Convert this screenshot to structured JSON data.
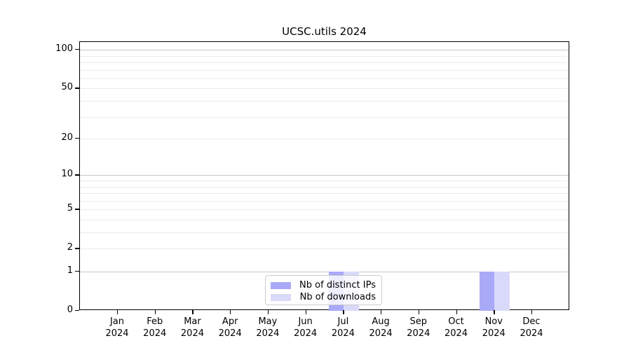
{
  "chart_data": {
    "type": "bar",
    "title": "UCSC.utils 2024",
    "categories": [
      "Jan",
      "Feb",
      "Mar",
      "Apr",
      "May",
      "Jun",
      "Jul",
      "Aug",
      "Sep",
      "Oct",
      "Nov",
      "Dec"
    ],
    "category_year": "2024",
    "series": [
      {
        "name": "Nb of distinct IPs",
        "color": "#a9a9f7",
        "values": [
          0,
          0,
          0,
          0,
          0,
          0,
          1,
          0,
          0,
          0,
          1,
          0
        ]
      },
      {
        "name": "Nb of downloads",
        "color": "#d9d9f9",
        "values": [
          0,
          0,
          0,
          0,
          0,
          0,
          1,
          0,
          0,
          0,
          1,
          0
        ]
      }
    ],
    "xlabel": "",
    "ylabel": "",
    "y_axis": {
      "scale": "log10(value+1)",
      "tick_values": [
        0,
        1,
        2,
        5,
        10,
        20,
        50,
        100
      ],
      "tick_labels": [
        "0",
        "1",
        "2",
        "5",
        "10",
        "20",
        "50",
        "100"
      ],
      "gridline_values": [
        1,
        2,
        3,
        4,
        5,
        6,
        7,
        8,
        9,
        10,
        20,
        30,
        40,
        50,
        60,
        70,
        80,
        90,
        100
      ],
      "major_gridline_values": [
        1,
        10,
        100
      ],
      "ylim": [
        0,
        114
      ]
    },
    "grid": "horizontal",
    "legend": {
      "position": "lower center",
      "entries": [
        "Nb of distinct IPs",
        "Nb of downloads"
      ]
    },
    "colors": {
      "distinct_ips_bar": "#a9a9f7",
      "downloads_bar": "#d9d9f9",
      "major_gridline": "#c6c6c6",
      "minor_gridline": "#ebebeb",
      "axis_frame": "#000000",
      "background": "#ffffff"
    }
  }
}
